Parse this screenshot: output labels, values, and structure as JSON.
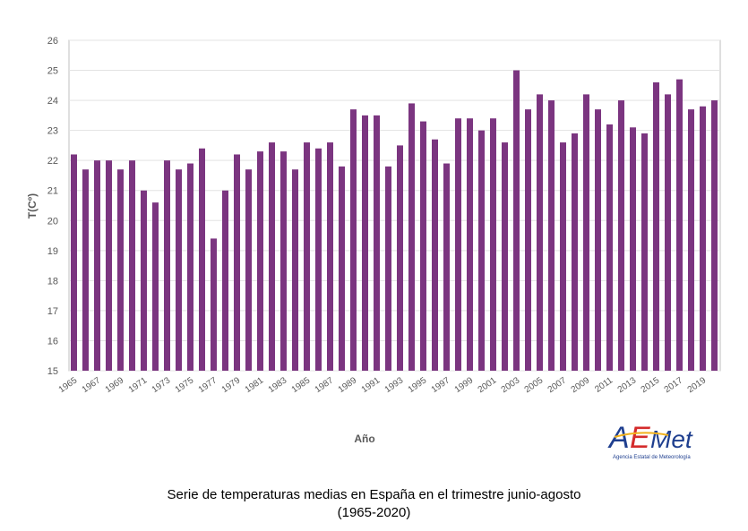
{
  "caption": {
    "line1": "Serie de temperaturas medias en España en el trimestre junio-agosto",
    "line2": "(1965-2020)"
  },
  "logo": {
    "name": "AEMet",
    "subtitle": "Agencia Estatal de Meteorología",
    "colors": {
      "blue": "#1f3f8f",
      "red": "#d42c2c",
      "yellow": "#f2b21b"
    }
  },
  "chart_data": {
    "type": "bar",
    "title": "",
    "xlabel": "Año",
    "ylabel": "T(Cº)",
    "ylim": [
      15,
      26
    ],
    "yticks": [
      15,
      16,
      17,
      18,
      19,
      20,
      21,
      22,
      23,
      24,
      25,
      26
    ],
    "grid": true,
    "bar_color": "#7b3580",
    "x_tick_labels": [
      "1965",
      "1967",
      "1969",
      "1971",
      "1973",
      "1975",
      "1977",
      "1979",
      "1981",
      "1983",
      "1985",
      "1987",
      "1989",
      "1991",
      "1993",
      "1995",
      "1997",
      "1999",
      "2001",
      "2003",
      "2005",
      "2007",
      "2009",
      "2011",
      "2013",
      "2015",
      "2017",
      "2019"
    ],
    "categories": [
      "1965",
      "1966",
      "1967",
      "1968",
      "1969",
      "1970",
      "1971",
      "1972",
      "1973",
      "1974",
      "1975",
      "1976",
      "1977",
      "1978",
      "1979",
      "1980",
      "1981",
      "1982",
      "1983",
      "1984",
      "1985",
      "1986",
      "1987",
      "1988",
      "1989",
      "1990",
      "1991",
      "1992",
      "1993",
      "1994",
      "1995",
      "1996",
      "1997",
      "1998",
      "1999",
      "2000",
      "2001",
      "2002",
      "2003",
      "2004",
      "2005",
      "2006",
      "2007",
      "2008",
      "2009",
      "2010",
      "2011",
      "2012",
      "2013",
      "2014",
      "2015",
      "2016",
      "2017",
      "2018",
      "2019",
      "2020"
    ],
    "values": [
      22.2,
      21.7,
      22.0,
      22.0,
      21.7,
      22.0,
      21.0,
      20.6,
      22.0,
      21.7,
      21.9,
      22.4,
      19.4,
      21.0,
      22.2,
      21.7,
      22.3,
      22.6,
      22.3,
      21.7,
      22.6,
      22.4,
      22.6,
      21.8,
      23.7,
      23.5,
      23.5,
      21.8,
      22.5,
      23.9,
      23.3,
      22.7,
      21.9,
      23.4,
      23.4,
      23.0,
      23.4,
      22.6,
      25.0,
      23.7,
      24.2,
      24.0,
      22.6,
      22.9,
      24.2,
      23.7,
      23.2,
      24.0,
      23.1,
      22.9,
      24.6,
      24.2,
      24.7,
      23.7,
      23.8,
      24.0
    ]
  }
}
